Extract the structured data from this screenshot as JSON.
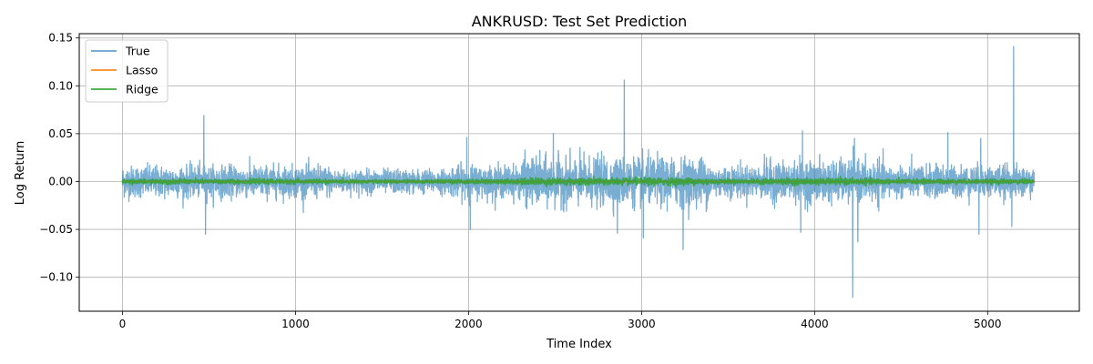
{
  "chart_data": {
    "type": "line",
    "title": "ANKRUSD: Test Set Prediction",
    "xlabel": "Time Index",
    "ylabel": "Log Return",
    "xlim": [
      -250,
      5530
    ],
    "ylim": [
      -0.1355,
      0.1545
    ],
    "xticks": [
      0,
      1000,
      2000,
      3000,
      4000,
      5000
    ],
    "xtick_labels": [
      "0",
      "1000",
      "2000",
      "3000",
      "4000",
      "5000"
    ],
    "yticks": [
      -0.1,
      -0.05,
      0.0,
      0.05,
      0.1,
      0.15
    ],
    "ytick_labels": [
      "−0.10",
      "−0.05",
      "0.00",
      "0.05",
      "0.10",
      "0.15"
    ],
    "grid": true,
    "legend_position": "top-left",
    "n_points": 5270,
    "series": [
      {
        "name": "True",
        "color": "#1f77b4",
        "opacity": 0.6,
        "noise_sd": 0.008,
        "spikes": [
          {
            "x": 470,
            "y": 0.069
          },
          {
            "x": 480,
            "y": -0.055
          },
          {
            "x": 1990,
            "y": 0.046
          },
          {
            "x": 2010,
            "y": -0.05
          },
          {
            "x": 2490,
            "y": 0.05
          },
          {
            "x": 2860,
            "y": -0.054
          },
          {
            "x": 2900,
            "y": 0.106
          },
          {
            "x": 3010,
            "y": -0.059
          },
          {
            "x": 3240,
            "y": -0.071
          },
          {
            "x": 3930,
            "y": 0.053
          },
          {
            "x": 3920,
            "y": -0.053
          },
          {
            "x": 4220,
            "y": -0.121
          },
          {
            "x": 4230,
            "y": 0.045
          },
          {
            "x": 4250,
            "y": -0.063
          },
          {
            "x": 4770,
            "y": 0.051
          },
          {
            "x": 4960,
            "y": 0.045
          },
          {
            "x": 4950,
            "y": -0.055
          },
          {
            "x": 5150,
            "y": 0.141
          },
          {
            "x": 5140,
            "y": -0.047
          }
        ]
      },
      {
        "name": "Lasso",
        "color": "#ff7f0e",
        "opacity": 0.8,
        "noise_sd": 0.0
      },
      {
        "name": "Ridge",
        "color": "#2ca02c",
        "opacity": 0.8,
        "noise_sd": 0.0012
      }
    ]
  }
}
